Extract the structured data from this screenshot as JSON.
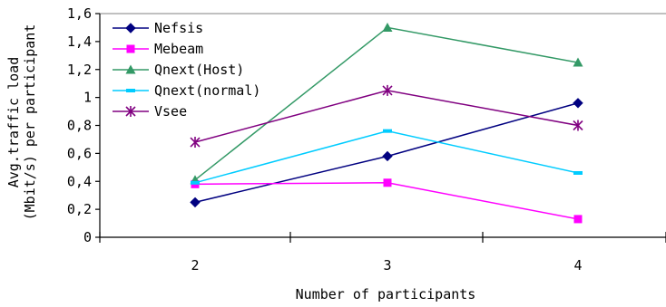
{
  "chart_data": {
    "type": "line",
    "title": "",
    "xlabel": "Number of participants",
    "ylabel_lines": [
      "Avg.traffic load",
      "(Mbit/s) per participant"
    ],
    "categories": [
      "2",
      "3",
      "4"
    ],
    "ylim": [
      0,
      1.6
    ],
    "yticks": [
      "0",
      "0,2",
      "0,4",
      "0,6",
      "0,8",
      "1",
      "1,2",
      "1,4",
      "1,6"
    ],
    "grid": "top line only",
    "legend_position": "top-left",
    "series": [
      {
        "name": "Nefsis",
        "values": [
          0.25,
          0.58,
          0.96
        ],
        "color": "#000080",
        "marker": "diamond"
      },
      {
        "name": "Mebeam",
        "values": [
          0.38,
          0.39,
          0.13
        ],
        "color": "#FF00FF",
        "marker": "square"
      },
      {
        "name": "Qnext(Host)",
        "values": [
          0.41,
          1.5,
          1.25
        ],
        "color": "#339966",
        "marker": "triangle"
      },
      {
        "name": "Qnext(normal)",
        "values": [
          0.39,
          0.76,
          0.46
        ],
        "color": "#00CCFF",
        "marker": "dash"
      },
      {
        "name": "Vsee",
        "values": [
          0.68,
          1.05,
          0.8
        ],
        "color": "#800080",
        "marker": "asterisk"
      }
    ]
  }
}
